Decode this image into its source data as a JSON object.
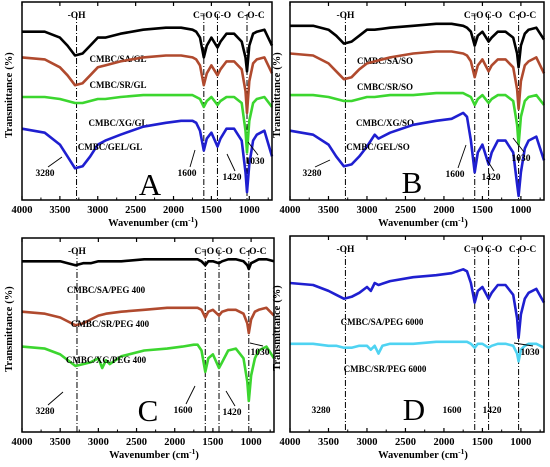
{
  "chart_data": [
    {
      "type": "line",
      "panel_label": "A",
      "xlabel": "Wavenumber",
      "xunit": "cm",
      "xunit_sup": "-1",
      "ylabel": "Transmittance",
      "yunit": "(%)",
      "xlim": [
        4000,
        700
      ],
      "xticks": [
        4000,
        3500,
        3000,
        2500,
        2000,
        1500,
        1000
      ],
      "ylim": [
        0,
        100
      ],
      "band_labels": [
        {
          "text": "-OH",
          "x": 3280
        },
        {
          "text": "C=O",
          "x": 1600
        },
        {
          "text": "C-O",
          "x": 1420
        },
        {
          "text": "C-O-C",
          "x": 1030
        }
      ],
      "annotations": [
        {
          "text": "3280",
          "x": 3280
        },
        {
          "text": "1600",
          "x": 1600
        },
        {
          "text": "1420",
          "x": 1420
        },
        {
          "text": "1030",
          "x": 1030
        }
      ],
      "series": [
        {
          "name": "CMBC/SA/GL",
          "color": "#000000",
          "x": [
            4000,
            3700,
            3500,
            3400,
            3300,
            3200,
            3100,
            3000,
            2900,
            2700,
            2400,
            2100,
            1900,
            1750,
            1700,
            1650,
            1600,
            1560,
            1500,
            1420,
            1380,
            1300,
            1200,
            1100,
            1050,
            1030,
            1000,
            950,
            900,
            800,
            700
          ],
          "y": [
            85,
            85,
            82,
            78,
            73,
            74,
            78,
            82,
            82,
            84,
            86,
            87,
            87,
            86,
            85,
            82,
            72,
            78,
            82,
            77,
            80,
            84,
            84,
            80,
            72,
            65,
            78,
            84,
            85,
            86,
            78
          ]
        },
        {
          "name": "CMBC/SR/GL",
          "color": "#b04a2e",
          "x": [
            4000,
            3700,
            3500,
            3400,
            3300,
            3200,
            3100,
            3000,
            2900,
            2700,
            2400,
            2100,
            1900,
            1750,
            1700,
            1650,
            1600,
            1560,
            1500,
            1420,
            1380,
            1300,
            1200,
            1100,
            1050,
            1030,
            1000,
            950,
            900,
            800,
            700
          ],
          "y": [
            72,
            71,
            67,
            63,
            58,
            59,
            63,
            67,
            68,
            70,
            72,
            73,
            73,
            72,
            71,
            68,
            58,
            64,
            68,
            63,
            66,
            70,
            70,
            66,
            55,
            44,
            60,
            69,
            71,
            72,
            64
          ]
        },
        {
          "name": "CMBC/XG/GL",
          "color": "#3cd62f",
          "x": [
            4000,
            3700,
            3500,
            3400,
            3300,
            3200,
            3100,
            3000,
            2900,
            2700,
            2400,
            2100,
            1900,
            1750,
            1700,
            1650,
            1600,
            1560,
            1500,
            1420,
            1380,
            1300,
            1200,
            1100,
            1050,
            1030,
            1000,
            950,
            900,
            800,
            700
          ],
          "y": [
            52,
            52,
            51,
            50,
            49,
            49,
            50,
            51,
            51,
            52,
            53,
            53,
            53,
            53,
            52,
            51,
            47,
            50,
            52,
            48,
            50,
            52,
            52,
            49,
            35,
            24,
            40,
            49,
            51,
            52,
            47
          ]
        },
        {
          "name": "CMBC/GEL/GL",
          "color": "#1f1fd0",
          "x": [
            4000,
            3700,
            3500,
            3400,
            3300,
            3200,
            3100,
            3000,
            2900,
            2700,
            2400,
            2100,
            1900,
            1750,
            1700,
            1650,
            1600,
            1560,
            1500,
            1420,
            1380,
            1300,
            1200,
            1100,
            1050,
            1030,
            1000,
            950,
            900,
            800,
            700
          ],
          "y": [
            36,
            34,
            28,
            22,
            16,
            17,
            22,
            28,
            30,
            33,
            37,
            39,
            40,
            40,
            39,
            35,
            25,
            31,
            34,
            27,
            31,
            36,
            36,
            30,
            14,
            4,
            18,
            30,
            33,
            35,
            22
          ]
        }
      ]
    },
    {
      "type": "line",
      "panel_label": "B",
      "xlabel": "Wavenumber",
      "xunit": "cm",
      "xunit_sup": "-1",
      "ylabel": "Transmittance",
      "yunit": "(%)",
      "xlim": [
        4000,
        700
      ],
      "xticks": [
        4000,
        3500,
        3000,
        2500,
        2000,
        1500,
        1000
      ],
      "ylim": [
        0,
        100
      ],
      "band_labels": [
        {
          "text": "-OH",
          "x": 3280
        },
        {
          "text": "C=O",
          "x": 1600
        },
        {
          "text": "C-O",
          "x": 1420
        },
        {
          "text": "C-O-C",
          "x": 1030
        }
      ],
      "annotations": [
        {
          "text": "3280",
          "x": 3280
        },
        {
          "text": "1600",
          "x": 1600
        },
        {
          "text": "1420",
          "x": 1420
        },
        {
          "text": "1030",
          "x": 1030
        }
      ],
      "series": [
        {
          "name": "CMBC/SA/SO",
          "color": "#000000",
          "x": [
            4000,
            3700,
            3500,
            3400,
            3300,
            3200,
            3100,
            3000,
            2900,
            2700,
            2400,
            2100,
            1900,
            1750,
            1700,
            1650,
            1600,
            1560,
            1500,
            1420,
            1380,
            1300,
            1200,
            1100,
            1050,
            1030,
            1000,
            950,
            900,
            800,
            700
          ],
          "y": [
            88,
            88,
            86,
            83,
            79,
            80,
            83,
            86,
            86,
            87,
            88,
            89,
            89,
            88,
            87,
            85,
            78,
            83,
            85,
            80,
            82,
            85,
            85,
            82,
            74,
            67,
            78,
            84,
            86,
            87,
            81
          ]
        },
        {
          "name": "CMBC/SR/SO",
          "color": "#b04a2e",
          "x": [
            4000,
            3700,
            3500,
            3400,
            3300,
            3200,
            3100,
            3000,
            2900,
            2700,
            2400,
            2100,
            1900,
            1750,
            1700,
            1650,
            1600,
            1560,
            1500,
            1420,
            1380,
            1300,
            1200,
            1100,
            1050,
            1030,
            1000,
            950,
            900,
            800,
            700
          ],
          "y": [
            74,
            73,
            69,
            65,
            61,
            62,
            66,
            69,
            70,
            72,
            74,
            75,
            75,
            74,
            73,
            70,
            62,
            68,
            71,
            65,
            68,
            71,
            71,
            67,
            56,
            46,
            60,
            68,
            70,
            72,
            64
          ]
        },
        {
          "name": "CMBC/XG/SO",
          "color": "#3cd62f",
          "x": [
            4000,
            3700,
            3500,
            3400,
            3300,
            3200,
            3100,
            3000,
            2900,
            2700,
            2400,
            2100,
            1900,
            1750,
            1700,
            1650,
            1600,
            1560,
            1500,
            1420,
            1380,
            1300,
            1200,
            1100,
            1050,
            1030,
            1000,
            950,
            900,
            800,
            700
          ],
          "y": [
            53,
            53,
            52,
            51,
            50,
            50,
            51,
            52,
            52,
            53,
            53,
            54,
            54,
            54,
            53,
            52,
            48,
            51,
            53,
            49,
            51,
            53,
            53,
            50,
            38,
            28,
            42,
            50,
            52,
            53,
            48
          ]
        },
        {
          "name": "CMBC/GEL/SO",
          "color": "#1f1fd0",
          "x": [
            4000,
            3700,
            3500,
            3400,
            3300,
            3200,
            3100,
            3000,
            2900,
            2850,
            2700,
            2400,
            2100,
            1900,
            1750,
            1700,
            1650,
            1600,
            1560,
            1500,
            1420,
            1380,
            1300,
            1200,
            1100,
            1050,
            1030,
            1000,
            950,
            900,
            800,
            700
          ],
          "y": [
            35,
            33,
            28,
            22,
            17,
            18,
            22,
            27,
            33,
            31,
            34,
            38,
            40,
            41,
            44,
            42,
            30,
            14,
            24,
            28,
            18,
            24,
            30,
            30,
            24,
            8,
            2,
            14,
            26,
            30,
            32,
            20
          ]
        }
      ]
    },
    {
      "type": "line",
      "panel_label": "C",
      "xlabel": "Wavenumber",
      "xunit": "cm",
      "xunit_sup": "-1",
      "ylabel": "Transmittance",
      "yunit": "(%)",
      "xlim": [
        4000,
        700
      ],
      "xticks": [
        4000,
        3500,
        3000,
        2500,
        2000,
        1500,
        1000
      ],
      "ylim": [
        0,
        100
      ],
      "band_labels": [
        {
          "text": "-OH",
          "x": 3280
        },
        {
          "text": "C=O",
          "x": 1600
        },
        {
          "text": "C-O",
          "x": 1420
        },
        {
          "text": "C-O-C",
          "x": 1030
        }
      ],
      "annotations": [
        {
          "text": "3280",
          "x": 3280
        },
        {
          "text": "1600",
          "x": 1600
        },
        {
          "text": "1420",
          "x": 1420
        },
        {
          "text": "1030",
          "x": 1030
        }
      ],
      "series": [
        {
          "name": "CMBC/SA/PEG 400",
          "color": "#000000",
          "x": [
            4000,
            3700,
            3500,
            3400,
            3300,
            3200,
            3100,
            3000,
            2900,
            2700,
            2400,
            2100,
            1900,
            1750,
            1700,
            1650,
            1600,
            1560,
            1500,
            1420,
            1380,
            1300,
            1200,
            1100,
            1050,
            1030,
            1000,
            950,
            900,
            800,
            700
          ],
          "y": [
            88,
            88,
            88,
            87,
            86,
            87,
            87,
            88,
            88,
            88,
            89,
            89,
            89,
            89,
            89,
            88,
            86,
            88,
            88,
            87,
            88,
            89,
            89,
            88,
            86,
            84,
            87,
            88,
            89,
            89,
            88
          ]
        },
        {
          "name": "CMBC/SR/PEG 400",
          "color": "#b04a2e",
          "x": [
            4000,
            3700,
            3500,
            3400,
            3300,
            3200,
            3100,
            3000,
            2900,
            2700,
            2400,
            2100,
            1900,
            1750,
            1700,
            1650,
            1600,
            1560,
            1500,
            1420,
            1380,
            1300,
            1200,
            1100,
            1050,
            1030,
            1000,
            950,
            900,
            800,
            700
          ],
          "y": [
            62,
            61,
            59,
            57,
            55,
            56,
            58,
            60,
            61,
            62,
            63,
            64,
            64,
            64,
            64,
            63,
            59,
            62,
            63,
            60,
            62,
            63,
            63,
            61,
            56,
            51,
            58,
            62,
            63,
            64,
            60
          ]
        },
        {
          "name": "CMBC/XG/PEG 400",
          "color": "#3cd62f",
          "x": [
            4000,
            3700,
            3500,
            3400,
            3300,
            3200,
            3100,
            3000,
            2950,
            2900,
            2850,
            2700,
            2400,
            2100,
            1900,
            1750,
            1700,
            1650,
            1600,
            1560,
            1500,
            1420,
            1380,
            1300,
            1200,
            1100,
            1050,
            1030,
            1000,
            950,
            900,
            800,
            700
          ],
          "y": [
            44,
            43,
            40,
            37,
            34,
            35,
            36,
            38,
            33,
            37,
            35,
            39,
            42,
            43,
            44,
            45,
            45,
            42,
            31,
            38,
            40,
            33,
            36,
            42,
            43,
            38,
            26,
            16,
            29,
            38,
            42,
            44,
            38
          ]
        }
      ]
    },
    {
      "type": "line",
      "panel_label": "D",
      "xlabel": "Wavenumber",
      "xunit": "cm",
      "xunit_sup": "-1",
      "ylabel": "Transmittance",
      "yunit": "(%)",
      "xlim": [
        4000,
        700
      ],
      "xticks": [
        4000,
        3500,
        3000,
        2500,
        2000,
        1500,
        1000
      ],
      "ylim": [
        0,
        100
      ],
      "band_labels": [
        {
          "text": "-OH",
          "x": 3280
        },
        {
          "text": "C=O",
          "x": 1600
        },
        {
          "text": "C-O",
          "x": 1420
        },
        {
          "text": "C-O-C",
          "x": 1030
        }
      ],
      "annotations": [
        {
          "text": "3280",
          "x": 3280
        },
        {
          "text": "1600",
          "x": 1600
        },
        {
          "text": "1420",
          "x": 1420
        },
        {
          "text": "1030",
          "x": 1030
        }
      ],
      "series": [
        {
          "name": "CMBC/SA/PEG 6000",
          "color": "#1f1fd0",
          "x": [
            4000,
            3700,
            3500,
            3400,
            3300,
            3200,
            3100,
            3000,
            2950,
            2900,
            2850,
            2700,
            2400,
            2100,
            1900,
            1750,
            1700,
            1650,
            1600,
            1560,
            1500,
            1420,
            1380,
            1300,
            1200,
            1100,
            1050,
            1030,
            1000,
            950,
            900,
            800,
            700
          ],
          "y": [
            76,
            75,
            72,
            70,
            68,
            69,
            71,
            74,
            72,
            76,
            75,
            77,
            79,
            80,
            81,
            83,
            82,
            76,
            66,
            72,
            74,
            68,
            71,
            75,
            75,
            70,
            58,
            48,
            60,
            68,
            71,
            73,
            66
          ]
        },
        {
          "name": "CMBC/SR/PEG 6000",
          "color": "#4fd3f2",
          "x": [
            4000,
            3700,
            3500,
            3400,
            3300,
            3200,
            3100,
            3000,
            2950,
            2900,
            2850,
            2800,
            2700,
            2400,
            2100,
            1900,
            1750,
            1700,
            1650,
            1600,
            1560,
            1500,
            1420,
            1380,
            1300,
            1200,
            1100,
            1050,
            1030,
            1000,
            950,
            900,
            800,
            700
          ],
          "y": [
            45,
            45,
            44,
            44,
            43,
            43,
            44,
            44,
            42,
            44,
            40,
            44,
            45,
            45,
            46,
            46,
            46,
            46,
            45,
            43,
            45,
            45,
            43,
            44,
            45,
            45,
            44,
            40,
            36,
            42,
            44,
            45,
            45,
            43
          ]
        }
      ]
    }
  ]
}
